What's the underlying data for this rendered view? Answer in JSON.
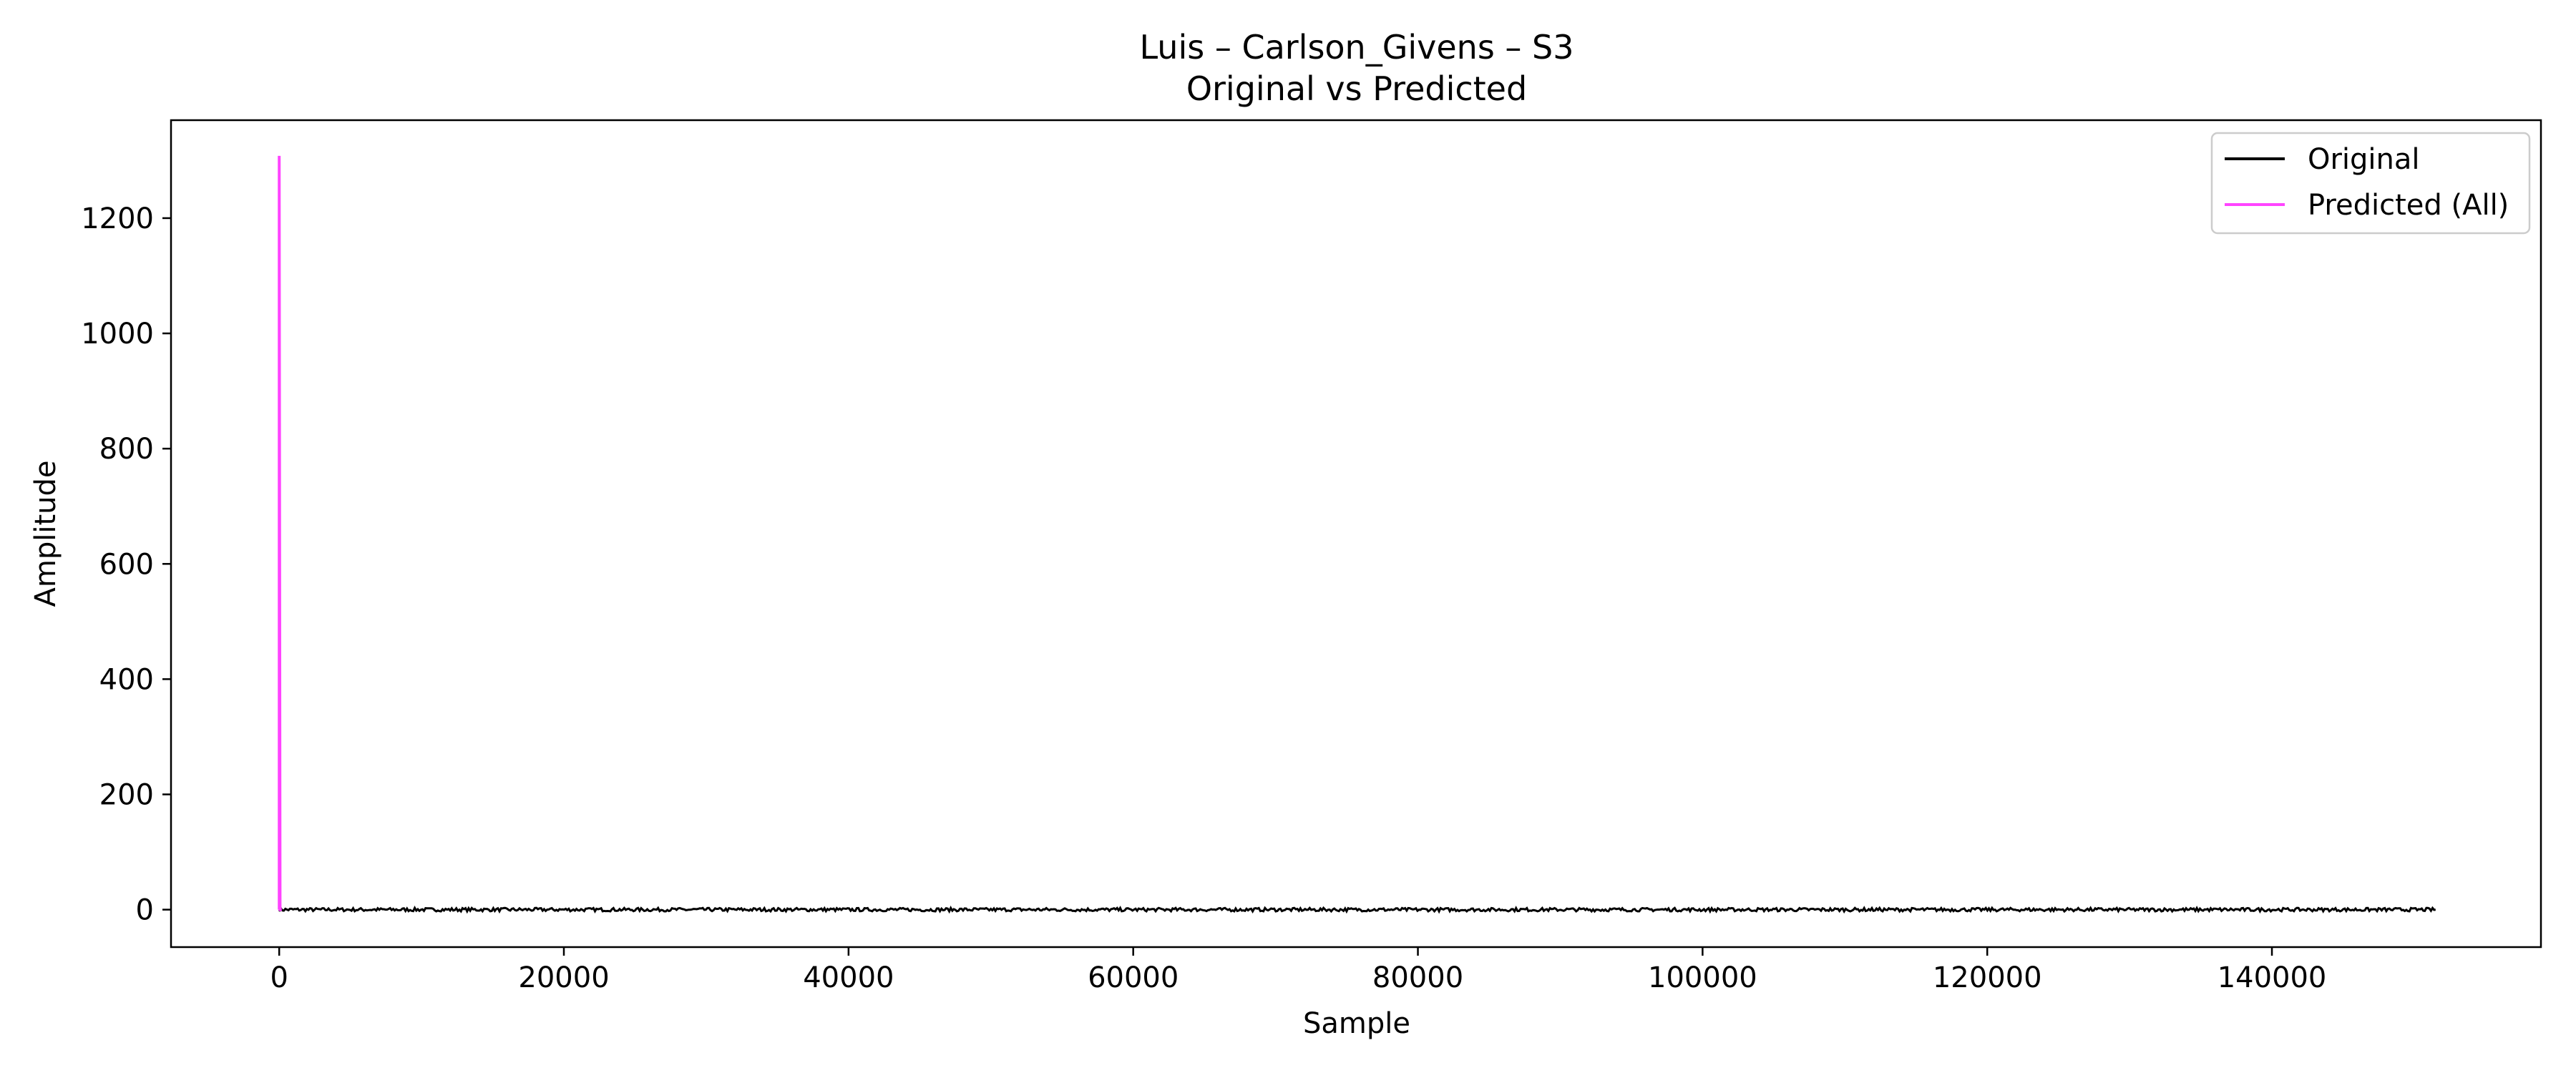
{
  "chart_data": {
    "type": "line",
    "title": "Luis – Carlson_Givens – S3",
    "subtitle": "Original vs Predicted",
    "xlabel": "Sample",
    "ylabel": "Amplitude",
    "xlim": [
      -7600,
      158900
    ],
    "ylim": [
      -65,
      1370
    ],
    "xticks": [
      0,
      20000,
      40000,
      60000,
      80000,
      100000,
      120000,
      140000
    ],
    "xtick_labels": [
      "0",
      "20000",
      "40000",
      "60000",
      "80000",
      "100000",
      "120000",
      "140000"
    ],
    "yticks": [
      0,
      200,
      400,
      600,
      800,
      1000,
      1200
    ],
    "ytick_labels": [
      "0",
      "200",
      "400",
      "600",
      "800",
      "1000",
      "1200"
    ],
    "grid": false,
    "legend_position": "top-right",
    "series": [
      {
        "name": "Original",
        "color": "#000000",
        "x": [
          0,
          151500
        ],
        "y": [
          0,
          0
        ],
        "note_noise_amplitude": 3
      },
      {
        "name": "Predicted (All)",
        "color": "#ff44ff",
        "x": [
          0,
          0,
          60,
          120,
          180
        ],
        "y": [
          0,
          1308,
          0,
          0,
          0
        ]
      }
    ]
  }
}
